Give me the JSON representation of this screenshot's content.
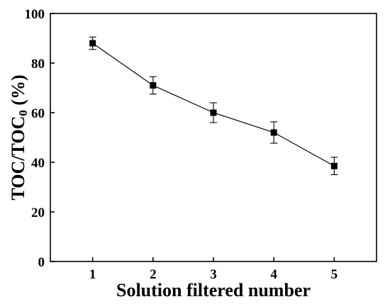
{
  "chart_data": {
    "type": "line",
    "xlabel": "Solution filtered number",
    "ylabel": {
      "main": "TOC/TOC",
      "subscript": "0",
      "suffix": " (%)"
    },
    "x": [
      1,
      2,
      3,
      4,
      5
    ],
    "series": [
      {
        "values": [
          88,
          71,
          60,
          52,
          38.5
        ],
        "errors": [
          2.5,
          3.5,
          4,
          4.3,
          3.5
        ],
        "color": "#000000",
        "marker": "square"
      }
    ],
    "xlim": [
      0.3,
      5.7
    ],
    "ylim": [
      0,
      100
    ],
    "xticks": [
      1,
      2,
      3,
      4,
      5
    ],
    "yticks": [
      0,
      20,
      40,
      60,
      80,
      100
    ],
    "grid": false
  }
}
